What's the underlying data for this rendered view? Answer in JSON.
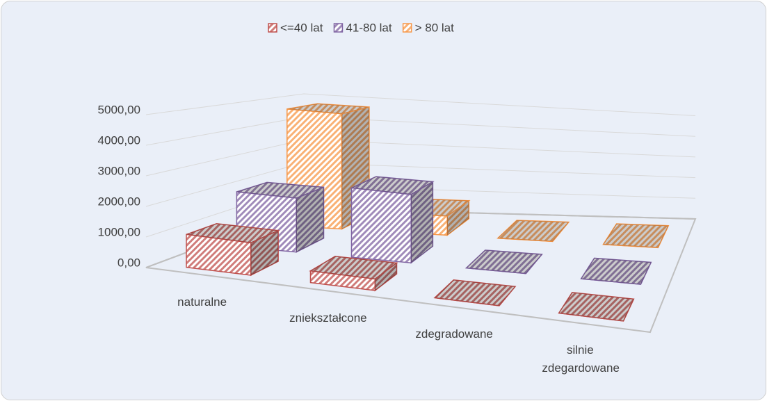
{
  "chart_data": {
    "type": "bar3d",
    "categories": [
      "naturalne",
      "zniekształcone",
      "zdegradowane",
      "silnie zdegardowane"
    ],
    "series": [
      {
        "name": "<=40 lat",
        "color": "#c0504d",
        "values": [
          1100,
          400,
          0,
          0
        ]
      },
      {
        "name": "41-80 lat",
        "color": "#8064a2",
        "values": [
          2000,
          2600,
          0,
          0
        ]
      },
      {
        "name": "> 80 lat",
        "color": "#f79646",
        "values": [
          4700,
          800,
          0,
          0
        ]
      }
    ],
    "ylim": [
      0,
      6000
    ],
    "yticks": [
      {
        "value": 0,
        "label": "0,00"
      },
      {
        "value": 1000,
        "label": "1000,00"
      },
      {
        "value": 2000,
        "label": "2000,00"
      },
      {
        "value": 3000,
        "label": "3000,00"
      },
      {
        "value": 4000,
        "label": "4000,00"
      },
      {
        "value": 5000,
        "label": "5000,00"
      }
    ],
    "grid": true,
    "legend": "top"
  }
}
